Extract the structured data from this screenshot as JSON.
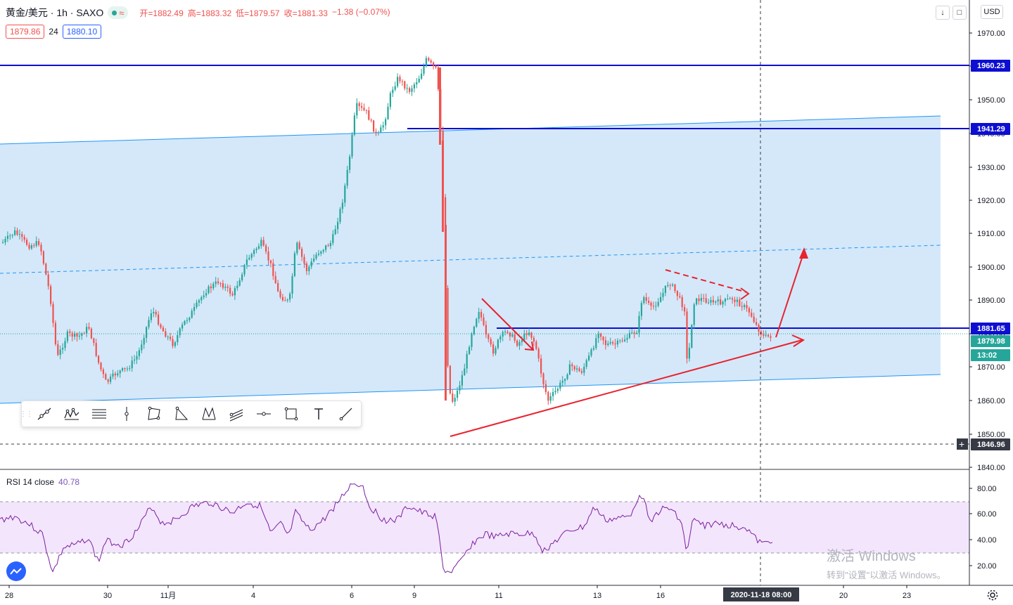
{
  "header": {
    "symbol": "黄金/美元 · 1h · SAXO",
    "open_label": "开=1882.49",
    "high_label": "高=1883.32",
    "low_label": "低=1879.57",
    "close_label": "收=1881.33",
    "change_label": "−1.38 (−0.07%)"
  },
  "quote": {
    "bid": "1879.86",
    "spread": "24",
    "ask": "1880.10"
  },
  "currency": "USD",
  "price_axis": {
    "ticks": [
      "1970.00",
      "1960.00",
      "1950.00",
      "1940.00",
      "1930.00",
      "1920.00",
      "1910.00",
      "1900.00",
      "1890.00",
      "1880.00",
      "1870.00",
      "1860.00",
      "1850.00",
      "1840.00"
    ],
    "badges": [
      {
        "text": "1960.23",
        "color": "#0d0ed1"
      },
      {
        "text": "1941.29",
        "color": "#0d0ed1"
      },
      {
        "text": "1881.65",
        "color": "#0d0ed1"
      },
      {
        "text": "1879.98",
        "color": "#26a69a"
      },
      {
        "text": "13:02",
        "color": "#26a69a"
      },
      {
        "text": "1846.96",
        "color": "#363a45"
      }
    ]
  },
  "rsi": {
    "label": "RSI 14 close",
    "value": "40.78",
    "ticks": [
      "80.00",
      "60.00",
      "40.00",
      "20.00"
    ]
  },
  "time_axis": {
    "labels": [
      "28",
      "30",
      "11月",
      "4",
      "6",
      "9",
      "11",
      "13",
      "16",
      "20",
      "23"
    ],
    "crosshair_label": "2020-11-18   08:00"
  },
  "toolbar": {
    "tools": [
      "trend-line-icon",
      "pattern-icon",
      "fib-icon",
      "vertical-line-icon",
      "rectangle-pattern-icon",
      "triangle-icon",
      "xabcd-icon",
      "pitchfork-icon",
      "horizontal-line-icon",
      "crop-icon",
      "text-icon",
      "ray-icon"
    ]
  },
  "watermark": {
    "line1": "激活 Windows",
    "line2": "转到\"设置\"以激活 Windows。"
  },
  "colors": {
    "up": "#26a69a",
    "down": "#ef5350",
    "level": "#0d0ed1",
    "channel": "#2196f3",
    "channel_fill": "#cfe6f9",
    "drawing": "#e8232e",
    "rsi": "#7b1fa2",
    "rsi_band": "#f3e5fb"
  },
  "chart_data": {
    "type": "candlestick",
    "instrument": "黄金/美元",
    "interval": "1h",
    "ylim": [
      1838,
      1975
    ],
    "horizontal_levels": [
      1960.23,
      1941.29,
      1881.65
    ],
    "last_price": 1879.98,
    "key_closes": [
      {
        "x": "28",
        "price": 1905
      },
      {
        "x": "29",
        "price": 1878
      },
      {
        "x": "30",
        "price": 1868
      },
      {
        "x": "11月",
        "price": 1880
      },
      {
        "x": "4",
        "price": 1905
      },
      {
        "x": "5",
        "price": 1912
      },
      {
        "x": "6",
        "price": 1945
      },
      {
        "x": "9 (pre)",
        "price": 1962
      },
      {
        "x": "9 (drop)",
        "price": 1855
      },
      {
        "x": "10",
        "price": 1885
      },
      {
        "x": "11",
        "price": 1875
      },
      {
        "x": "12",
        "price": 1860
      },
      {
        "x": "13",
        "price": 1878
      },
      {
        "x": "16",
        "price": 1895
      },
      {
        "x": "17",
        "price": 1888
      },
      {
        "x": "18",
        "price": 1880
      }
    ],
    "rsi_ylim": [
      10,
      90
    ],
    "rsi_last": 40.78
  }
}
